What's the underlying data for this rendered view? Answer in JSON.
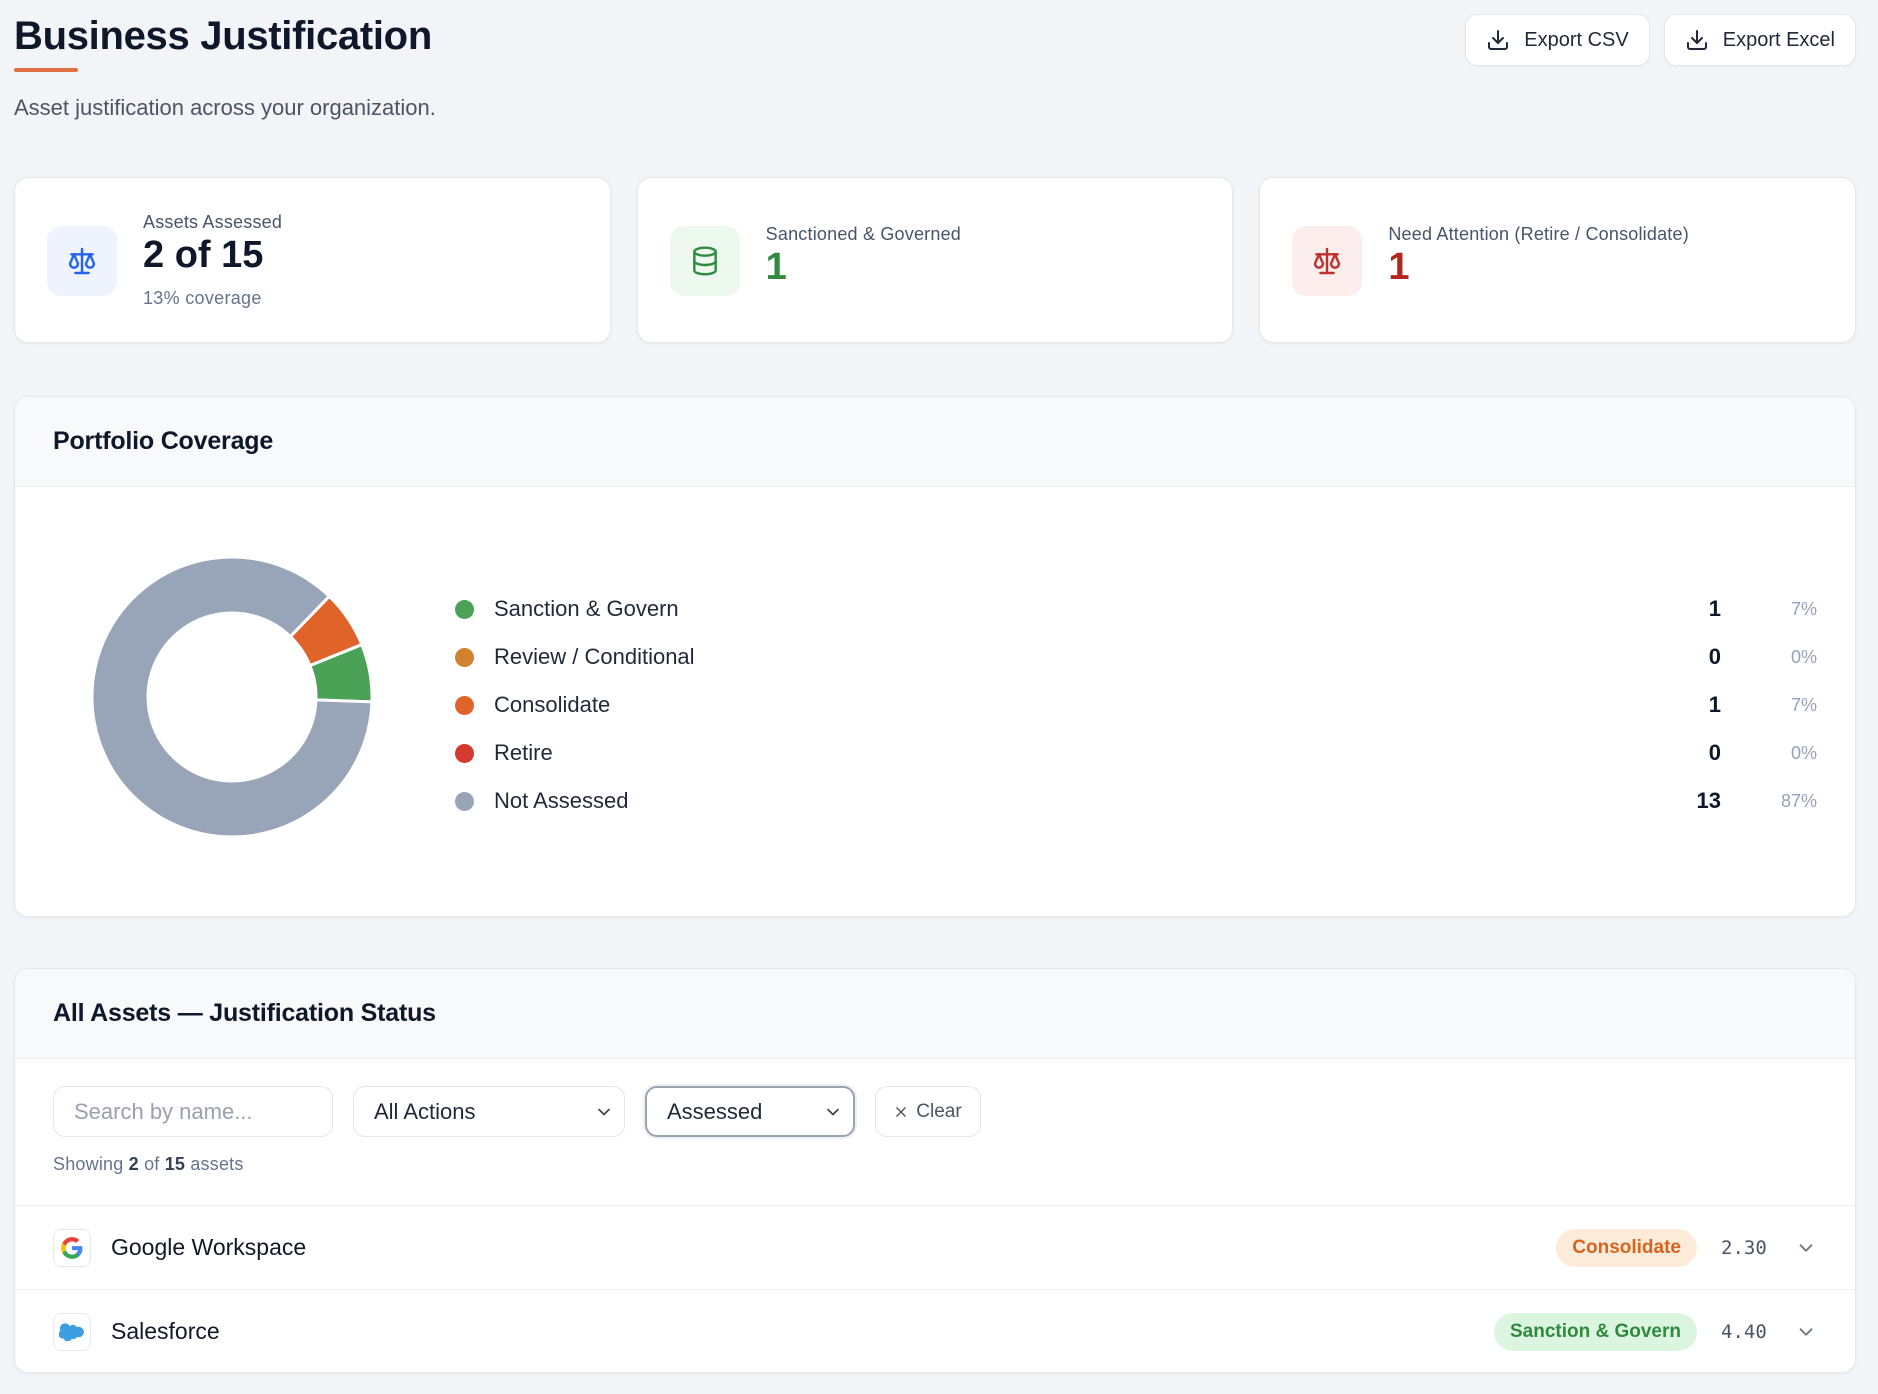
{
  "header": {
    "title": "Business Justification",
    "subtitle": "Asset justification across your organization.",
    "export_csv": "Export CSV",
    "export_excel": "Export Excel",
    "accent_color": "#e07040"
  },
  "stats": [
    {
      "label": "Assets Assessed",
      "value": "2 of 15",
      "sub": "13% coverage",
      "icon": "scale-icon",
      "color": "#2563eb"
    },
    {
      "label": "Sanctioned & Governed",
      "value": "1",
      "icon": "database-icon",
      "color": "#2f8a3e"
    },
    {
      "label": "Need Attention (Retire / Consolidate)",
      "value": "1",
      "icon": "scale-icon",
      "color": "#c0302a"
    }
  ],
  "coverage": {
    "title": "Portfolio Coverage",
    "chart_data": {
      "type": "pie",
      "categories": [
        "Sanction & Govern",
        "Review / Conditional",
        "Consolidate",
        "Retire",
        "Not Assessed"
      ],
      "values": [
        1,
        0,
        1,
        0,
        13
      ],
      "percents": [
        "7%",
        "0%",
        "7%",
        "0%",
        "87%"
      ],
      "colors": [
        "#4ba257",
        "#d0822e",
        "#e0632a",
        "#d43a30",
        "#98a4b8"
      ],
      "donut": true
    }
  },
  "assets": {
    "title": "All Assets — Justification Status",
    "search_placeholder": "Search by name...",
    "action_filter": "All Actions",
    "status_filter": "Assessed",
    "clear_label": "Clear",
    "showing": {
      "prefix": "Showing",
      "count": "2",
      "of": "of",
      "total": "15",
      "suffix": "assets"
    },
    "rows": [
      {
        "name": "Google Workspace",
        "action": "Consolidate",
        "score": "2.30",
        "logo": "google-logo-icon",
        "badge_bg": "#fdebd9",
        "badge_fg": "#d9631f"
      },
      {
        "name": "Salesforce",
        "action": "Sanction & Govern",
        "score": "4.40",
        "logo": "salesforce-logo-icon",
        "badge_bg": "#dcf5e1",
        "badge_fg": "#2f8a3e"
      }
    ]
  }
}
